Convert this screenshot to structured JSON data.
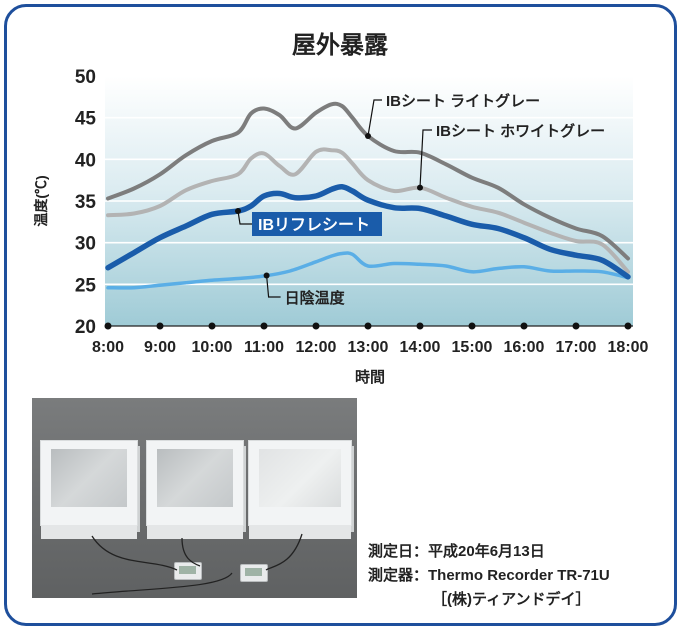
{
  "chart_data": {
    "type": "line",
    "title": "屋外暴露",
    "xlabel": "時間",
    "ylabel": "温度(℃)",
    "ylim": [
      20,
      50
    ],
    "yticks": [
      20,
      25,
      30,
      35,
      40,
      45,
      50
    ],
    "xlim": [
      8,
      18
    ],
    "xticks": [
      "8:00",
      "9:00",
      "10:00",
      "11:00",
      "12:00",
      "13:00",
      "14:00",
      "15:00",
      "16:00",
      "17:00",
      "18:00"
    ],
    "grid": true,
    "legend": "inline callouts",
    "series": [
      {
        "name": "IBシート ライトグレー",
        "color": "#7d7d7d",
        "x": [
          8,
          8.5,
          9,
          9.5,
          10,
          10.5,
          10.75,
          11,
          11.3,
          11.6,
          12,
          12.3,
          12.5,
          12.7,
          13,
          13.5,
          14,
          14.5,
          15,
          15.5,
          16,
          16.5,
          17,
          17.5,
          18
        ],
        "y": [
          35.3,
          36.5,
          38.2,
          40.5,
          42.2,
          43.2,
          45.5,
          46.1,
          45.3,
          43.7,
          45.6,
          46.6,
          46.4,
          45.0,
          42.8,
          41.0,
          40.8,
          39.4,
          37.8,
          36.6,
          34.6,
          33.0,
          31.7,
          30.8,
          28.1
        ]
      },
      {
        "name": "IBシート ホワイトグレー",
        "color": "#b3b3b3",
        "x": [
          8,
          8.5,
          9,
          9.5,
          10,
          10.5,
          10.75,
          11,
          11.3,
          11.6,
          12,
          12.3,
          12.5,
          12.7,
          13,
          13.5,
          14,
          14.5,
          15,
          15.5,
          16,
          16.5,
          17,
          17.5,
          18
        ],
        "y": [
          33.3,
          33.5,
          34.4,
          36.3,
          37.4,
          38.2,
          40.1,
          40.7,
          39.2,
          38.2,
          40.9,
          41.1,
          40.8,
          39.5,
          37.5,
          36.2,
          36.6,
          35.4,
          34.3,
          33.6,
          32.4,
          31.2,
          30.2,
          29.8,
          26.5
        ]
      },
      {
        "name": "IBリフレシート",
        "color": "#1a5caa",
        "x": [
          8,
          8.5,
          9,
          9.5,
          10,
          10.5,
          10.75,
          11,
          11.3,
          11.6,
          12,
          12.3,
          12.5,
          12.7,
          13,
          13.5,
          14,
          14.5,
          15,
          15.5,
          16,
          16.5,
          17,
          17.5,
          18
        ],
        "y": [
          27.0,
          28.8,
          30.6,
          32.0,
          33.4,
          33.8,
          34.4,
          35.6,
          35.9,
          35.4,
          35.6,
          36.4,
          36.7,
          36.2,
          35.1,
          34.2,
          34.1,
          33.2,
          32.2,
          31.7,
          30.6,
          29.2,
          28.5,
          27.9,
          25.9
        ]
      },
      {
        "name": "日陰温度",
        "color": "#5aaee6",
        "x": [
          8,
          8.5,
          9,
          9.5,
          10,
          10.5,
          11,
          11.5,
          12,
          12.3,
          12.5,
          12.7,
          13,
          13.5,
          14,
          14.5,
          15,
          15.5,
          16,
          16.5,
          17,
          17.5,
          18
        ],
        "y": [
          24.6,
          24.6,
          24.9,
          25.2,
          25.5,
          25.7,
          26.0,
          26.6,
          27.7,
          28.4,
          28.7,
          28.6,
          27.2,
          27.5,
          27.4,
          27.2,
          26.5,
          26.9,
          27.1,
          26.6,
          26.6,
          26.5,
          25.8
        ]
      }
    ],
    "annotations": [
      {
        "series": 0,
        "text": "IBシート ライトグレー",
        "at_x": 13.0
      },
      {
        "series": 1,
        "text": "IBシート ホワイトグレー",
        "at_x": 14.0
      },
      {
        "series": 2,
        "text": "IBリフレシート",
        "at_x": 10.5
      },
      {
        "series": 3,
        "text": "日陰温度",
        "at_x": 11.05
      }
    ]
  },
  "info": {
    "date_label": "測定日：",
    "date_value": "平成20年6月13日",
    "device_label": "測定器：",
    "device_value": "Thermo Recorder TR-71U",
    "maker": "［(株)ティアンドデイ］"
  }
}
